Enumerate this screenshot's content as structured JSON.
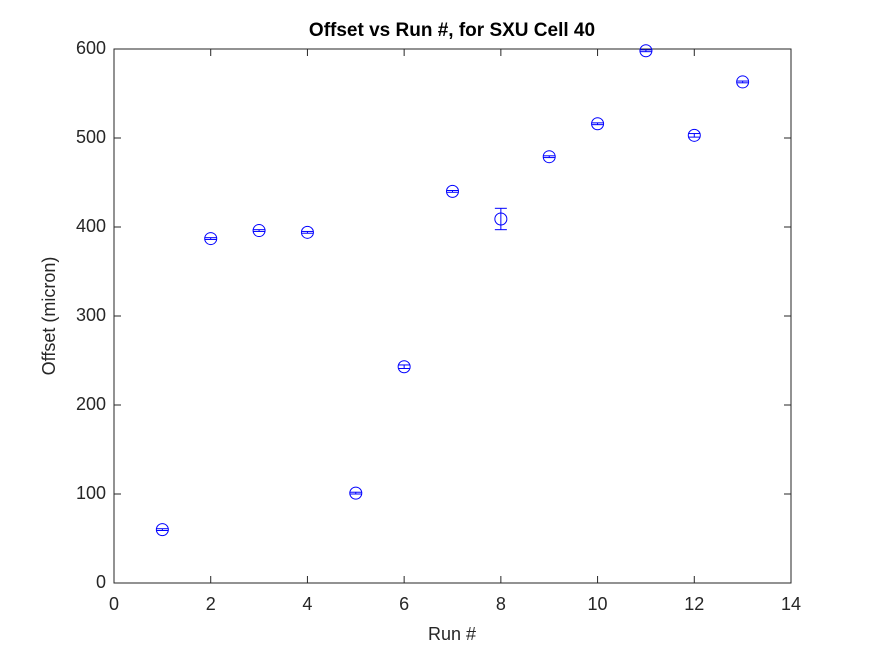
{
  "chart_data": {
    "type": "errorbar",
    "title": "Offset vs Run #, for SXU Cell 40",
    "x_label": "Run #",
    "y_label": "Offset (micron)",
    "x": [
      1,
      2,
      3,
      4,
      5,
      6,
      7,
      8,
      9,
      10,
      11,
      12,
      13
    ],
    "values": [
      60,
      387,
      396,
      394,
      101,
      243,
      440,
      409,
      479,
      516,
      598,
      503,
      563
    ],
    "errors": [
      1,
      1,
      1,
      1,
      1,
      2,
      1,
      12,
      1,
      1,
      1,
      2,
      1
    ],
    "color": "#0000ff",
    "xlim": [
      0,
      14
    ],
    "xticks": [
      0,
      2,
      4,
      6,
      8,
      10,
      12,
      14
    ],
    "ylim": [
      0,
      600
    ],
    "yticks": [
      0,
      100,
      200,
      300,
      400,
      500,
      600
    ],
    "grid": false
  }
}
